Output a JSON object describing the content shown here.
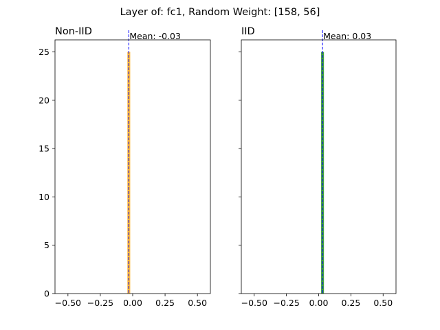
{
  "suptitle": "Layer of: fc1, Random Weight: [158, 56]",
  "colors": {
    "mean_line": "#0000ff",
    "axis": "#000000"
  },
  "chart_data": [
    {
      "type": "bar",
      "title": "Non-IID",
      "xlim": [
        -0.6,
        0.6
      ],
      "ylim": [
        0,
        26.25
      ],
      "xticks": [
        -0.5,
        -0.25,
        0.0,
        0.25,
        0.5
      ],
      "xtick_labels": [
        "−0.50",
        "−0.25",
        "0.00",
        "0.25",
        "0.50"
      ],
      "yticks": [
        0,
        5,
        10,
        15,
        20,
        25
      ],
      "ytick_labels": [
        "0",
        "5",
        "10",
        "15",
        "20",
        "25"
      ],
      "show_ytick_labels": true,
      "bars": [
        {
          "x0": -0.041,
          "x1": -0.019,
          "count": 25
        }
      ],
      "bar_color": "#ffa500",
      "bar_opacity": 0.75,
      "mean": -0.03,
      "mean_label": "Mean: -0.03"
    },
    {
      "type": "bar",
      "title": "IID",
      "xlim": [
        -0.6,
        0.6
      ],
      "ylim": [
        0,
        26.25
      ],
      "xticks": [
        -0.5,
        -0.25,
        0.0,
        0.25,
        0.5
      ],
      "xtick_labels": [
        "−0.50",
        "−0.25",
        "0.00",
        "0.25",
        "0.50"
      ],
      "yticks": [
        0,
        5,
        10,
        15,
        20,
        25
      ],
      "ytick_labels": [
        "0",
        "5",
        "10",
        "15",
        "20",
        "25"
      ],
      "show_ytick_labels": false,
      "bars": [
        {
          "x0": 0.019,
          "x1": 0.041,
          "count": 25
        }
      ],
      "bar_color": "#008000",
      "bar_opacity": 0.75,
      "mean": 0.03,
      "mean_label": "Mean: 0.03"
    }
  ]
}
